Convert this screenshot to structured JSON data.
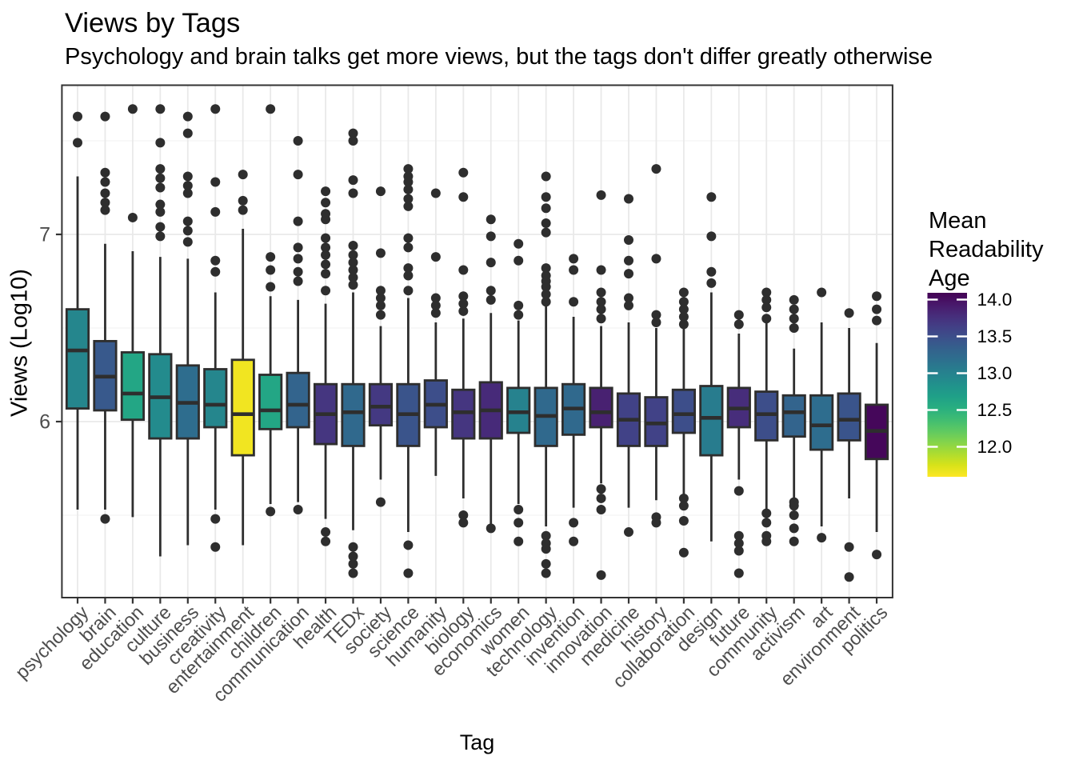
{
  "title": "Views by Tags",
  "subtitle": "Psychology and brain talks get more views, but the tags don't differ greatly otherwise",
  "chart_data": {
    "type": "boxplot",
    "title": "Views by Tags",
    "subtitle": "Psychology and brain talks get more views, but the tags don't differ greatly otherwise",
    "xlabel": "Tag",
    "ylabel": "Views (Log10)",
    "y_axis": {
      "ticks": [
        6,
        7
      ],
      "minor_gridlines": [
        5.5,
        6.5,
        7.5
      ],
      "range": [
        5.06,
        7.8
      ],
      "grid": true
    },
    "legend": {
      "title": "Mean Readability Age",
      "title_lines": [
        "Mean",
        "Readability",
        "Age"
      ],
      "position": "right",
      "colormap": "viridis (reversed: high = dark purple, low = yellow)",
      "ticks": [
        14.0,
        13.5,
        13.0,
        12.5,
        12.0
      ],
      "tick_labels": [
        "14.0",
        "13.5",
        "13.0",
        "12.5",
        "12.0"
      ],
      "value_range": [
        11.59,
        14.09
      ]
    },
    "categories": [
      "psychology",
      "brain",
      "education",
      "culture",
      "business",
      "creativity",
      "entertainment",
      "children",
      "communication",
      "health",
      "TEDx",
      "society",
      "science",
      "humanity",
      "biology",
      "economics",
      "women",
      "technology",
      "invention",
      "innovation",
      "medicine",
      "history",
      "collaboration",
      "design",
      "future",
      "community",
      "activism",
      "art",
      "environment",
      "politics"
    ],
    "series": [
      {
        "tag": "psychology",
        "mean_readability_age": 12.95,
        "whisker_low": 5.53,
        "q1": 6.07,
        "median": 6.38,
        "q3": 6.6,
        "whisker_high": 7.31,
        "outliers_high": [
          7.63,
          7.49
        ],
        "outliers_low": []
      },
      {
        "tag": "brain",
        "mean_readability_age": 13.4,
        "whisker_low": 5.53,
        "q1": 6.06,
        "median": 6.24,
        "q3": 6.43,
        "whisker_high": 6.95,
        "outliers_high": [
          7.63,
          7.33,
          7.28,
          7.22,
          7.17,
          7.13
        ],
        "outliers_low": [
          5.48
        ]
      },
      {
        "tag": "education",
        "mean_readability_age": 12.62,
        "whisker_low": 5.49,
        "q1": 6.01,
        "median": 6.15,
        "q3": 6.37,
        "whisker_high": 6.91,
        "outliers_high": [
          7.67,
          7.09
        ],
        "outliers_low": []
      },
      {
        "tag": "culture",
        "mean_readability_age": 12.9,
        "whisker_low": 5.28,
        "q1": 5.91,
        "median": 6.13,
        "q3": 6.36,
        "whisker_high": 6.88,
        "outliers_high": [
          7.67,
          7.49,
          7.35,
          7.3,
          7.25,
          7.16,
          7.12,
          7.04,
          6.99
        ],
        "outliers_low": []
      },
      {
        "tag": "business",
        "mean_readability_age": 13.2,
        "whisker_low": 5.34,
        "q1": 5.91,
        "median": 6.1,
        "q3": 6.3,
        "whisker_high": 6.87,
        "outliers_high": [
          7.63,
          7.54,
          7.31,
          7.26,
          7.22,
          7.07,
          7.02,
          6.96
        ],
        "outliers_low": []
      },
      {
        "tag": "creativity",
        "mean_readability_age": 12.95,
        "whisker_low": 5.53,
        "q1": 5.97,
        "median": 6.09,
        "q3": 6.28,
        "whisker_high": 6.69,
        "outliers_high": [
          7.67,
          7.28,
          7.12,
          6.86,
          6.8
        ],
        "outliers_low": [
          5.48,
          5.33
        ]
      },
      {
        "tag": "entertainment",
        "mean_readability_age": 11.64,
        "whisker_low": 5.34,
        "q1": 5.82,
        "median": 6.04,
        "q3": 6.33,
        "whisker_high": 7.03,
        "outliers_high": [
          7.32,
          7.18,
          7.13
        ],
        "outliers_low": []
      },
      {
        "tag": "children",
        "mean_readability_age": 12.62,
        "whisker_low": 5.56,
        "q1": 5.96,
        "median": 6.06,
        "q3": 6.25,
        "whisker_high": 6.67,
        "outliers_high": [
          7.67,
          6.88,
          6.81,
          6.72
        ],
        "outliers_low": [
          5.52
        ]
      },
      {
        "tag": "communication",
        "mean_readability_age": 13.3,
        "whisker_low": 5.57,
        "q1": 5.97,
        "median": 6.09,
        "q3": 6.26,
        "whisker_high": 6.65,
        "outliers_high": [
          7.5,
          7.32,
          7.07,
          6.93,
          6.87,
          6.8,
          6.75
        ],
        "outliers_low": [
          5.53
        ]
      },
      {
        "tag": "health",
        "mean_readability_age": 13.7,
        "whisker_low": 5.48,
        "q1": 5.88,
        "median": 6.04,
        "q3": 6.2,
        "whisker_high": 6.63,
        "outliers_high": [
          7.23,
          7.17,
          7.11,
          7.08,
          6.98,
          6.93,
          6.89,
          6.84,
          6.79,
          6.7
        ],
        "outliers_low": [
          5.41,
          5.36
        ]
      },
      {
        "tag": "TEDx",
        "mean_readability_age": 13.25,
        "whisker_low": 5.42,
        "q1": 5.87,
        "median": 6.05,
        "q3": 6.2,
        "whisker_high": 6.69,
        "outliers_high": [
          7.54,
          7.5,
          7.29,
          7.22,
          6.94,
          6.89,
          6.85,
          6.81,
          6.77,
          6.73
        ],
        "outliers_low": [
          5.33,
          5.28,
          5.24,
          5.19
        ]
      },
      {
        "tag": "society",
        "mean_readability_age": 13.68,
        "whisker_low": 5.69,
        "q1": 5.98,
        "median": 6.08,
        "q3": 6.2,
        "whisker_high": 6.51,
        "outliers_high": [
          7.23,
          6.9,
          6.7,
          6.66,
          6.62,
          6.57
        ],
        "outliers_low": [
          5.57
        ]
      },
      {
        "tag": "science",
        "mean_readability_age": 13.45,
        "whisker_low": 5.41,
        "q1": 5.87,
        "median": 6.04,
        "q3": 6.2,
        "whisker_high": 6.66,
        "outliers_high": [
          7.35,
          7.31,
          7.28,
          7.24,
          7.19,
          7.15,
          6.98,
          6.93,
          6.82,
          6.78,
          6.7
        ],
        "outliers_low": [
          5.34,
          5.19
        ]
      },
      {
        "tag": "humanity",
        "mean_readability_age": 13.5,
        "whisker_low": 5.71,
        "q1": 5.97,
        "median": 6.09,
        "q3": 6.22,
        "whisker_high": 6.53,
        "outliers_high": [
          7.22,
          6.88,
          6.66,
          6.62,
          6.58
        ],
        "outliers_low": []
      },
      {
        "tag": "biology",
        "mean_readability_age": 13.7,
        "whisker_low": 5.59,
        "q1": 5.91,
        "median": 6.05,
        "q3": 6.17,
        "whisker_high": 6.55,
        "outliers_high": [
          7.33,
          7.2,
          6.81,
          6.67,
          6.63,
          6.59
        ],
        "outliers_low": [
          5.5,
          5.46
        ]
      },
      {
        "tag": "economics",
        "mean_readability_age": 13.8,
        "whisker_low": 5.45,
        "q1": 5.91,
        "median": 6.06,
        "q3": 6.21,
        "whisker_high": 6.58,
        "outliers_high": [
          7.08,
          6.99,
          6.85,
          6.7,
          6.65
        ],
        "outliers_low": [
          5.43
        ]
      },
      {
        "tag": "women",
        "mean_readability_age": 13.0,
        "whisker_low": 5.56,
        "q1": 5.94,
        "median": 6.05,
        "q3": 6.18,
        "whisker_high": 6.54,
        "outliers_high": [
          6.95,
          6.86,
          6.62,
          6.57
        ],
        "outliers_low": [
          5.53,
          5.46,
          5.36
        ]
      },
      {
        "tag": "technology",
        "mean_readability_age": 13.25,
        "whisker_low": 5.44,
        "q1": 5.87,
        "median": 6.03,
        "q3": 6.18,
        "whisker_high": 6.63,
        "outliers_high": [
          7.31,
          7.2,
          7.14,
          7.06,
          7.01,
          6.82,
          6.78,
          6.75,
          6.72,
          6.68,
          6.64
        ],
        "outliers_low": [
          5.39,
          5.35,
          5.32,
          5.24,
          5.19
        ]
      },
      {
        "tag": "invention",
        "mean_readability_age": 13.25,
        "whisker_low": 5.54,
        "q1": 5.93,
        "median": 6.07,
        "q3": 6.2,
        "whisker_high": 6.56,
        "outliers_high": [
          6.87,
          6.81,
          6.64
        ],
        "outliers_low": [
          5.46,
          5.36
        ]
      },
      {
        "tag": "innovation",
        "mean_readability_age": 13.87,
        "whisker_low": 5.67,
        "q1": 5.97,
        "median": 6.05,
        "q3": 6.18,
        "whisker_high": 6.51,
        "outliers_high": [
          7.21,
          6.81,
          6.69,
          6.64,
          6.6,
          6.55
        ],
        "outliers_low": [
          5.64,
          5.59,
          5.53,
          5.18
        ]
      },
      {
        "tag": "medicine",
        "mean_readability_age": 13.6,
        "whisker_low": 5.54,
        "q1": 5.87,
        "median": 6.01,
        "q3": 6.15,
        "whisker_high": 6.53,
        "outliers_high": [
          7.19,
          6.97,
          6.86,
          6.79,
          6.66,
          6.62
        ],
        "outliers_low": [
          5.41
        ]
      },
      {
        "tag": "history",
        "mean_readability_age": 13.6,
        "whisker_low": 5.58,
        "q1": 5.87,
        "median": 5.99,
        "q3": 6.13,
        "whisker_high": 6.5,
        "outliers_high": [
          7.35,
          6.87,
          6.57,
          6.53
        ],
        "outliers_low": [
          5.49,
          5.46
        ]
      },
      {
        "tag": "collaboration",
        "mean_readability_age": 13.5,
        "whisker_low": 5.61,
        "q1": 5.94,
        "median": 6.04,
        "q3": 6.17,
        "whisker_high": 6.5,
        "outliers_high": [
          6.69,
          6.64,
          6.6,
          6.56,
          6.52
        ],
        "outliers_low": [
          5.59,
          5.55,
          5.47,
          5.3
        ]
      },
      {
        "tag": "design",
        "mean_readability_age": 13.05,
        "whisker_low": 5.36,
        "q1": 5.82,
        "median": 6.02,
        "q3": 6.19,
        "whisker_high": 6.69,
        "outliers_high": [
          7.2,
          6.99,
          6.8,
          6.74
        ],
        "outliers_low": []
      },
      {
        "tag": "future",
        "mean_readability_age": 13.78,
        "whisker_low": 5.69,
        "q1": 5.97,
        "median": 6.07,
        "q3": 6.18,
        "whisker_high": 6.47,
        "outliers_high": [
          6.57,
          6.52
        ],
        "outliers_low": [
          5.63,
          5.39,
          5.35,
          5.31,
          5.19
        ]
      },
      {
        "tag": "community",
        "mean_readability_age": 13.5,
        "whisker_low": 5.53,
        "q1": 5.9,
        "median": 6.04,
        "q3": 6.16,
        "whisker_high": 6.53,
        "outliers_high": [
          6.69,
          6.65,
          6.61,
          6.55
        ],
        "outliers_low": [
          5.51,
          5.46,
          5.39,
          5.36
        ]
      },
      {
        "tag": "activism",
        "mean_readability_age": 13.3,
        "whisker_low": 5.59,
        "q1": 5.92,
        "median": 6.05,
        "q3": 6.14,
        "whisker_high": 6.39,
        "outliers_high": [
          6.65,
          6.6,
          6.55,
          6.5
        ],
        "outliers_low": [
          5.57,
          5.55,
          5.5,
          5.43,
          5.36
        ]
      },
      {
        "tag": "art",
        "mean_readability_age": 13.2,
        "whisker_low": 5.44,
        "q1": 5.85,
        "median": 5.98,
        "q3": 6.14,
        "whisker_high": 6.53,
        "outliers_high": [
          6.69
        ],
        "outliers_low": [
          5.38
        ]
      },
      {
        "tag": "environment",
        "mean_readability_age": 13.45,
        "whisker_low": 5.59,
        "q1": 5.9,
        "median": 6.01,
        "q3": 6.15,
        "whisker_high": 6.5,
        "outliers_high": [
          6.58
        ],
        "outliers_low": [
          5.33,
          5.17
        ]
      },
      {
        "tag": "politics",
        "mean_readability_age": 14.05,
        "whisker_low": 5.41,
        "q1": 5.8,
        "median": 5.95,
        "q3": 6.09,
        "whisker_high": 6.42,
        "outliers_high": [
          6.67,
          6.6,
          6.54
        ],
        "outliers_low": [
          5.29
        ]
      }
    ]
  },
  "colors": {
    "background": "#ffffff",
    "panel_background": "#ffffff",
    "panel_border": "#333333",
    "grid_major": "#e9e9e9",
    "grid_minor": "#f3f3f3",
    "box_stroke": "#2e2e2e",
    "outlier_fill": "#2e2e2e",
    "axis_text": "#4d4d4d",
    "text": "#000000",
    "viridis_stops": [
      "#440154",
      "#48186a",
      "#472d7b",
      "#424086",
      "#3b528b",
      "#33638d",
      "#2c728e",
      "#26828e",
      "#21918c",
      "#1fa088",
      "#28ae80",
      "#3fbc73",
      "#5ec962",
      "#84d44b",
      "#addc30",
      "#d8e219",
      "#fde725"
    ]
  }
}
